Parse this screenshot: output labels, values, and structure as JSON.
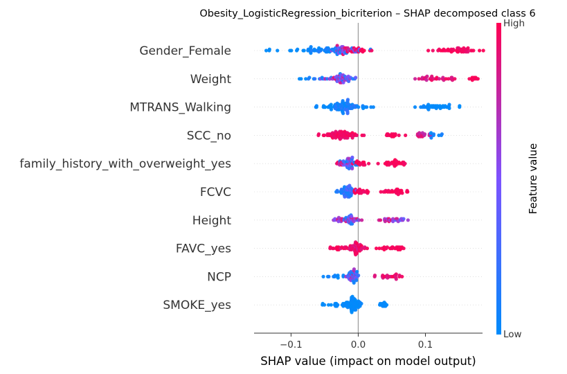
{
  "chart_data": {
    "type": "scatter",
    "subtype": "shap-beeswarm",
    "title": "Obesity_LogisticRegression_bicriterion – SHAP decomposed class 6",
    "xlabel": "SHAP value (impact on model output)",
    "xlim": [
      -0.155,
      0.185
    ],
    "xticks": [
      -0.1,
      0.0,
      0.1
    ],
    "xtick_labels": [
      "−0.1",
      "0.0",
      "0.1"
    ],
    "grid": false,
    "zero_line": true,
    "colorbar": {
      "label": "Feature value",
      "high_label": "High",
      "low_label": "Low",
      "low_color": "#008bfb",
      "mid_color": "#7c52ff",
      "high_color": "#ff0052"
    },
    "features": [
      {
        "name": "Gender_Female",
        "clusters": [
          {
            "center": -0.13,
            "spread": 0.006,
            "count": 4,
            "value": 0.0,
            "value_spread": 0.02
          },
          {
            "center": -0.095,
            "spread": 0.008,
            "count": 4,
            "value": 0.0,
            "value_spread": 0.03
          },
          {
            "center": -0.07,
            "spread": 0.015,
            "count": 14,
            "value": 0.02,
            "value_spread": 0.04
          },
          {
            "center": -0.038,
            "spread": 0.018,
            "count": 46,
            "value": 0.08,
            "value_spread": 0.08
          },
          {
            "center": -0.018,
            "spread": 0.01,
            "count": 36,
            "value": 0.62,
            "value_spread": 0.3
          },
          {
            "center": -0.004,
            "spread": 0.01,
            "count": 22,
            "value": 0.97,
            "value_spread": 0.03
          },
          {
            "center": 0.135,
            "spread": 0.012,
            "count": 26,
            "value": 0.97,
            "value_spread": 0.03
          },
          {
            "center": 0.162,
            "spread": 0.01,
            "count": 22,
            "value": 0.95,
            "value_spread": 0.05
          }
        ]
      },
      {
        "name": "Weight",
        "clusters": [
          {
            "center": -0.085,
            "spread": 0.006,
            "count": 3,
            "value": 0.0,
            "value_spread": 0.02
          },
          {
            "center": -0.06,
            "spread": 0.01,
            "count": 8,
            "value": 0.1,
            "value_spread": 0.1
          },
          {
            "center": -0.035,
            "spread": 0.01,
            "count": 18,
            "value": 0.55,
            "value_spread": 0.4
          },
          {
            "center": -0.022,
            "spread": 0.009,
            "count": 40,
            "value": 0.45,
            "value_spread": 0.45
          },
          {
            "center": 0.12,
            "spread": 0.018,
            "count": 32,
            "value": 0.88,
            "value_spread": 0.1
          },
          {
            "center": 0.17,
            "spread": 0.004,
            "count": 10,
            "value": 0.98,
            "value_spread": 0.02
          }
        ]
      },
      {
        "name": "MTRANS_Walking",
        "clusters": [
          {
            "center": -0.045,
            "spread": 0.014,
            "count": 30,
            "value": 0.02,
            "value_spread": 0.03
          },
          {
            "center": -0.02,
            "spread": 0.009,
            "count": 60,
            "value": 0.12,
            "value_spread": 0.12
          },
          {
            "center": 0.008,
            "spread": 0.006,
            "count": 8,
            "value": 0.02,
            "value_spread": 0.02
          },
          {
            "center": 0.115,
            "spread": 0.018,
            "count": 38,
            "value": 0.02,
            "value_spread": 0.03
          }
        ]
      },
      {
        "name": "SCC_no",
        "clusters": [
          {
            "center": -0.05,
            "spread": 0.008,
            "count": 8,
            "value": 0.97,
            "value_spread": 0.03
          },
          {
            "center": -0.02,
            "spread": 0.011,
            "count": 70,
            "value": 0.95,
            "value_spread": 0.05
          },
          {
            "center": 0.047,
            "spread": 0.005,
            "count": 14,
            "value": 0.97,
            "value_spread": 0.03
          },
          {
            "center": 0.095,
            "spread": 0.01,
            "count": 20,
            "value": 0.85,
            "value_spread": 0.12
          },
          {
            "center": 0.112,
            "spread": 0.007,
            "count": 8,
            "value": 0.05,
            "value_spread": 0.05
          }
        ]
      },
      {
        "name": "family_history_with_overweight_yes",
        "clusters": [
          {
            "center": -0.03,
            "spread": 0.006,
            "count": 12,
            "value": 0.85,
            "value_spread": 0.15
          },
          {
            "center": -0.015,
            "spread": 0.006,
            "count": 40,
            "value": 0.35,
            "value_spread": 0.35
          },
          {
            "center": 0.002,
            "spread": 0.007,
            "count": 18,
            "value": 0.97,
            "value_spread": 0.03
          },
          {
            "center": 0.055,
            "spread": 0.011,
            "count": 30,
            "value": 0.97,
            "value_spread": 0.03
          }
        ]
      },
      {
        "name": "FCVC",
        "clusters": [
          {
            "center": -0.028,
            "spread": 0.006,
            "count": 12,
            "value": 0.12,
            "value_spread": 0.12
          },
          {
            "center": -0.015,
            "spread": 0.005,
            "count": 45,
            "value": 0.25,
            "value_spread": 0.2
          },
          {
            "center": 0.003,
            "spread": 0.006,
            "count": 22,
            "value": 0.95,
            "value_spread": 0.05
          },
          {
            "center": 0.055,
            "spread": 0.012,
            "count": 30,
            "value": 0.97,
            "value_spread": 0.03
          }
        ]
      },
      {
        "name": "Height",
        "clusters": [
          {
            "center": -0.03,
            "spread": 0.006,
            "count": 10,
            "value": 0.6,
            "value_spread": 0.35
          },
          {
            "center": -0.012,
            "spread": 0.008,
            "count": 42,
            "value": 0.5,
            "value_spread": 0.45
          },
          {
            "center": 0.045,
            "spread": 0.012,
            "count": 22,
            "value": 0.75,
            "value_spread": 0.2
          },
          {
            "center": 0.06,
            "spread": 0.005,
            "count": 6,
            "value": 0.4,
            "value_spread": 0.1
          }
        ]
      },
      {
        "name": "FAVC_yes",
        "clusters": [
          {
            "center": -0.03,
            "spread": 0.008,
            "count": 14,
            "value": 0.97,
            "value_spread": 0.03
          },
          {
            "center": -0.005,
            "spread": 0.007,
            "count": 50,
            "value": 0.9,
            "value_spread": 0.1
          },
          {
            "center": 0.045,
            "spread": 0.012,
            "count": 26,
            "value": 0.97,
            "value_spread": 0.03
          }
        ]
      },
      {
        "name": "NCP",
        "clusters": [
          {
            "center": -0.035,
            "spread": 0.008,
            "count": 12,
            "value": 0.05,
            "value_spread": 0.05
          },
          {
            "center": -0.008,
            "spread": 0.006,
            "count": 50,
            "value": 0.4,
            "value_spread": 0.4
          },
          {
            "center": 0.045,
            "spread": 0.011,
            "count": 24,
            "value": 0.9,
            "value_spread": 0.1
          }
        ]
      },
      {
        "name": "SMOKE_yes",
        "clusters": [
          {
            "center": -0.05,
            "spread": 0.003,
            "count": 2,
            "value": 0.05,
            "value_spread": 0.05
          },
          {
            "center": -0.03,
            "spread": 0.007,
            "count": 12,
            "value": 0.02,
            "value_spread": 0.02
          },
          {
            "center": -0.008,
            "spread": 0.006,
            "count": 70,
            "value": 0.02,
            "value_spread": 0.03
          },
          {
            "center": 0.038,
            "spread": 0.004,
            "count": 14,
            "value": 0.02,
            "value_spread": 0.02
          }
        ]
      }
    ]
  }
}
